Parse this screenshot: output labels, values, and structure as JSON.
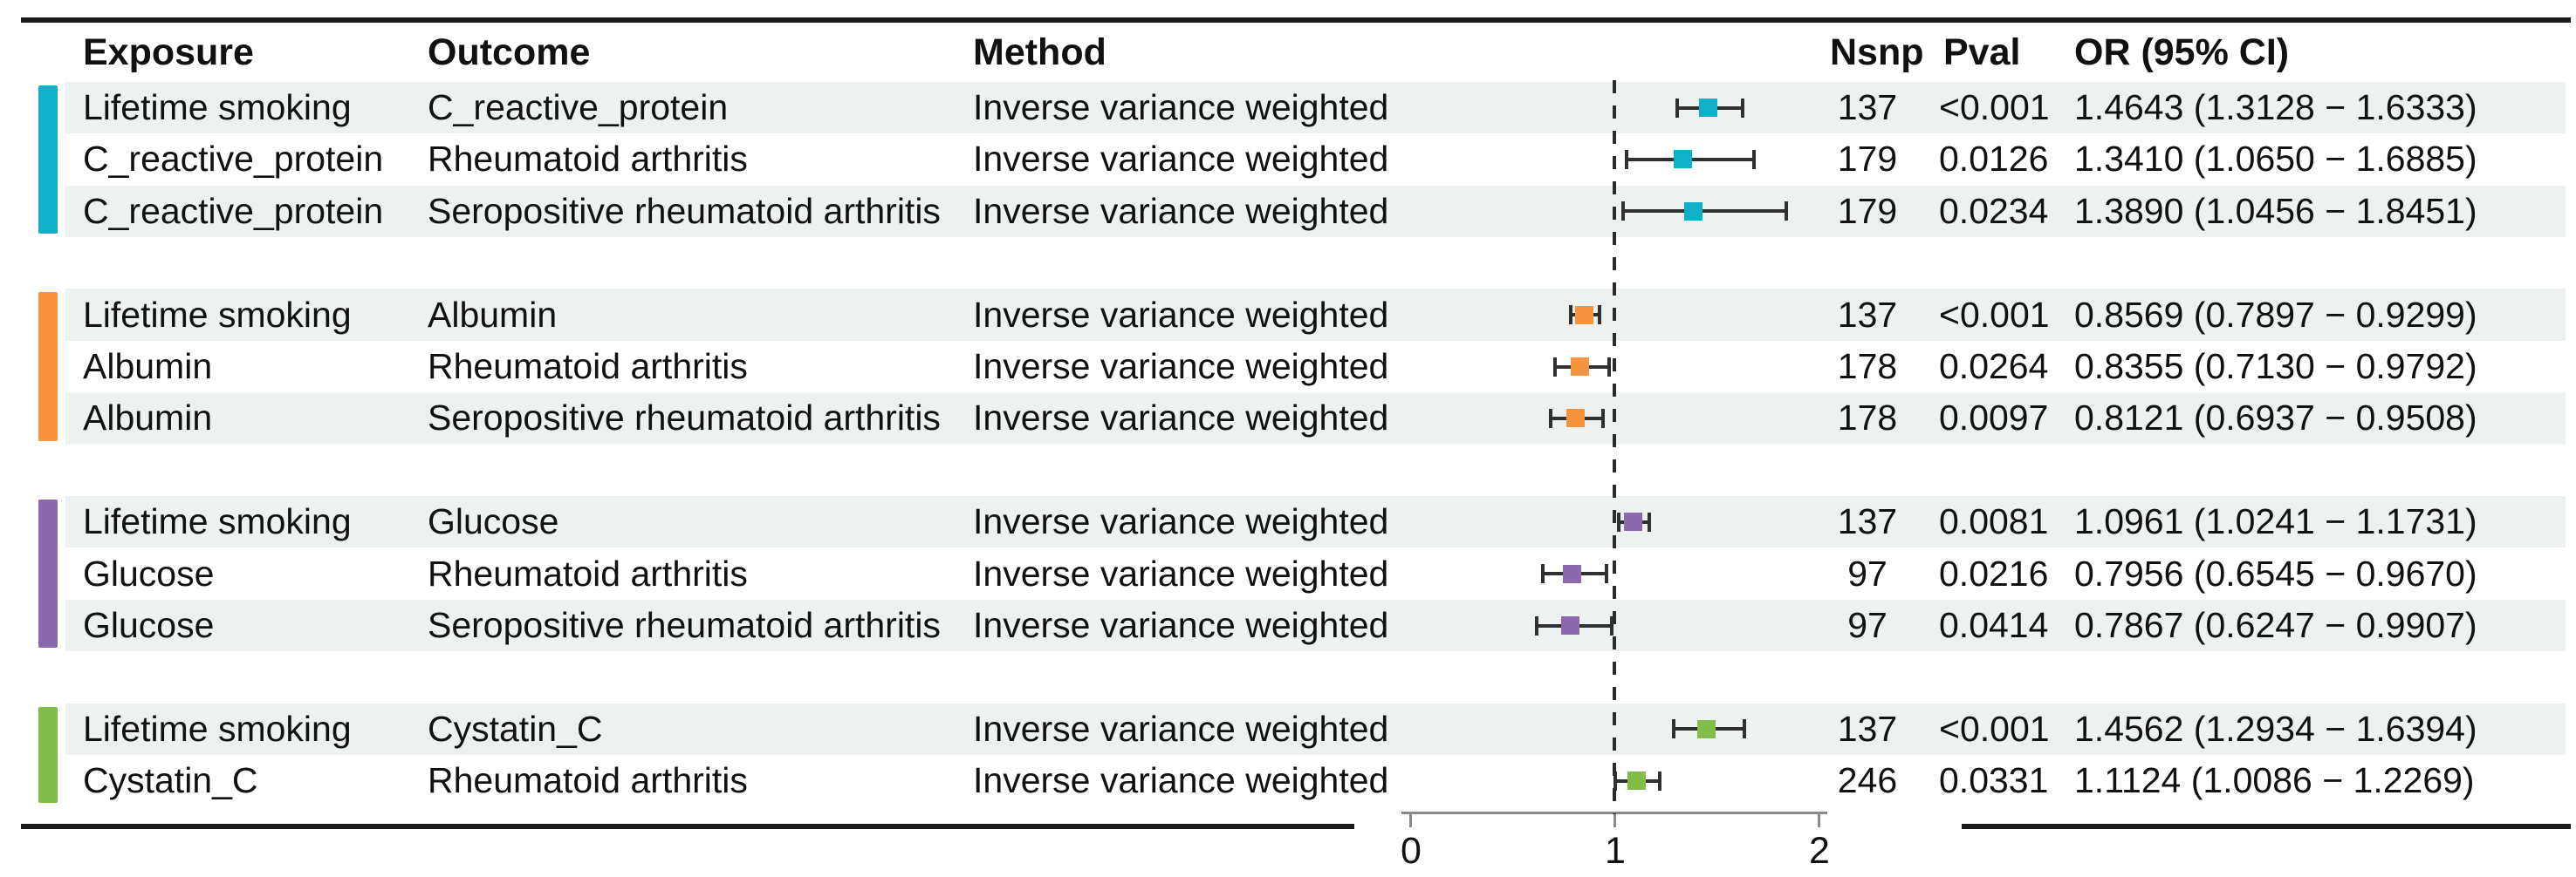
{
  "figure": {
    "columns": {
      "exposure": "Exposure",
      "outcome": "Outcome",
      "method": "Method",
      "nsnp": "Nsnp",
      "pval": "Pval",
      "or_ci": "OR (95% CI)"
    }
  },
  "chart_data": {
    "type": "forest",
    "x_axis": {
      "ticks": [
        "0",
        "1",
        "2"
      ],
      "range": [
        0,
        2
      ],
      "ref_line": 1
    },
    "legend": "none",
    "styles": {
      "shade": "#edf1ef",
      "marker_line": "#303030",
      "axis_line": "#8a8a8a",
      "border": "#1a1a1a",
      "dash": "#2b2b2b"
    },
    "groups": [
      {
        "name": "c-reactive-protein",
        "color": "#0fb0c8",
        "rows": [
          {
            "exposure": "Lifetime smoking",
            "outcome": "C_reactive_protein",
            "method": "Inverse variance weighted",
            "nsnp": "137",
            "pval": "<0.001",
            "or_ci": "1.4643 (1.3128 − 1.6333)",
            "or": 1.4643,
            "lo": 1.3128,
            "hi": 1.6333
          },
          {
            "exposure": "C_reactive_protein",
            "outcome": "Rheumatoid arthritis",
            "method": "Inverse variance weighted",
            "nsnp": "179",
            "pval": "0.0126",
            "or_ci": "1.3410 (1.0650 − 1.6885)",
            "or": 1.341,
            "lo": 1.065,
            "hi": 1.6885
          },
          {
            "exposure": "C_reactive_protein",
            "outcome": "Seropositive rheumatoid arthritis",
            "method": "Inverse variance weighted",
            "nsnp": "179",
            "pval": "0.0234",
            "or_ci": "1.3890 (1.0456 − 1.8451)",
            "or": 1.389,
            "lo": 1.0456,
            "hi": 1.8451
          }
        ]
      },
      {
        "name": "albumin",
        "color": "#f89440",
        "rows": [
          {
            "exposure": "Lifetime smoking",
            "outcome": "Albumin",
            "method": "Inverse variance weighted",
            "nsnp": "137",
            "pval": "<0.001",
            "or_ci": "0.8569 (0.7897 − 0.9299)",
            "or": 0.8569,
            "lo": 0.7897,
            "hi": 0.9299
          },
          {
            "exposure": "Albumin",
            "outcome": "Rheumatoid arthritis",
            "method": "Inverse variance weighted",
            "nsnp": "178",
            "pval": "0.0264",
            "or_ci": "0.8355 (0.7130 − 0.9792)",
            "or": 0.8355,
            "lo": 0.713,
            "hi": 0.9792
          },
          {
            "exposure": "Albumin",
            "outcome": "Seropositive rheumatoid arthritis",
            "method": "Inverse variance weighted",
            "nsnp": "178",
            "pval": "0.0097",
            "or_ci": "0.8121 (0.6937 − 0.9508)",
            "or": 0.8121,
            "lo": 0.6937,
            "hi": 0.9508
          }
        ]
      },
      {
        "name": "glucose",
        "color": "#8c68ad",
        "rows": [
          {
            "exposure": "Lifetime smoking",
            "outcome": "Glucose",
            "method": "Inverse variance weighted",
            "nsnp": "137",
            "pval": "0.0081",
            "or_ci": "1.0961 (1.0241 − 1.1731)",
            "or": 1.0961,
            "lo": 1.0241,
            "hi": 1.1731
          },
          {
            "exposure": "Glucose",
            "outcome": "Rheumatoid arthritis",
            "method": "Inverse variance weighted",
            "nsnp": "97",
            "pval": "0.0216",
            "or_ci": "0.7956 (0.6545 − 0.9670)",
            "or": 0.7956,
            "lo": 0.6545,
            "hi": 0.967
          },
          {
            "exposure": "Glucose",
            "outcome": "Seropositive rheumatoid arthritis",
            "method": "Inverse variance weighted",
            "nsnp": "97",
            "pval": "0.0414",
            "or_ci": "0.7867 (0.6247 − 0.9907)",
            "or": 0.7867,
            "lo": 0.6247,
            "hi": 0.9907
          }
        ]
      },
      {
        "name": "cystatin-c",
        "color": "#80bd4a",
        "rows": [
          {
            "exposure": "Lifetime smoking",
            "outcome": "Cystatin_C",
            "method": "Inverse variance weighted",
            "nsnp": "137",
            "pval": "<0.001",
            "or_ci": "1.4562 (1.2934 − 1.6394)",
            "or": 1.4562,
            "lo": 1.2934,
            "hi": 1.6394
          },
          {
            "exposure": "Cystatin_C",
            "outcome": "Rheumatoid arthritis",
            "method": "Inverse variance weighted",
            "nsnp": "246",
            "pval": "0.0331",
            "or_ci": "1.1124 (1.0086 − 1.2269)",
            "or": 1.1124,
            "lo": 1.0086,
            "hi": 1.2269
          }
        ]
      }
    ]
  }
}
